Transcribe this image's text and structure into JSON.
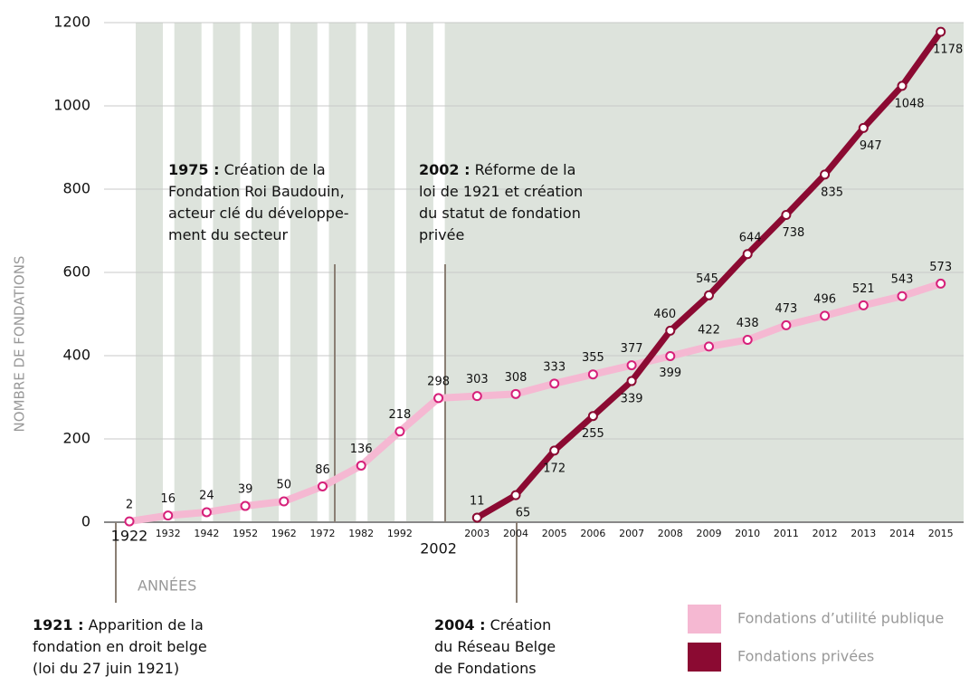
{
  "chart_data": {
    "type": "line",
    "y_label": "NOMBRE DE FONDATIONS",
    "x_label": "ANNÉES",
    "categories": [
      "1922",
      "1932",
      "1942",
      "1952",
      "1962",
      "1972",
      "1982",
      "1992",
      "2002",
      "2003",
      "2004",
      "2005",
      "2006",
      "2007",
      "2008",
      "2009",
      "2010",
      "2011",
      "2012",
      "2013",
      "2014",
      "2015"
    ],
    "series": [
      {
        "name": "Fondations d’utilité publique",
        "color": "#f5b8d2",
        "marker_color": "#d6207a",
        "values": [
          2,
          16,
          24,
          39,
          50,
          86,
          136,
          218,
          298,
          303,
          308,
          333,
          355,
          377,
          399,
          422,
          438,
          473,
          496,
          521,
          543,
          573
        ]
      },
      {
        "name": "Fondations privées",
        "color": "#8b0a32",
        "marker_color": "#8b0a32",
        "values": [
          null,
          null,
          null,
          null,
          null,
          null,
          null,
          null,
          null,
          11,
          65,
          172,
          255,
          339,
          460,
          545,
          644,
          738,
          835,
          947,
          1048,
          1178
        ]
      }
    ],
    "ylim": [
      0,
      1200
    ],
    "yticks": [
      0,
      200,
      400,
      600,
      800,
      1000,
      1200
    ],
    "grid": true,
    "annotations": [
      {
        "bold": "1975 :",
        "lines": [
          " Création de la",
          "Fondation Roi Baudouin,",
          "acteur clé du développe-",
          "ment du secteur"
        ]
      },
      {
        "bold": "2002 :",
        "lines": [
          " Réforme de la",
          "loi de 1921 et création",
          "du statut de fondation",
          "privée"
        ]
      },
      {
        "bold": "1921 :",
        "lines": [
          " Apparition de la",
          "fondation en droit belge",
          "(loi du 27 juin 1921)"
        ]
      },
      {
        "bold": "2004 :",
        "lines": [
          " Création",
          "du Réseau Belge",
          "de Fondations"
        ]
      }
    ]
  }
}
